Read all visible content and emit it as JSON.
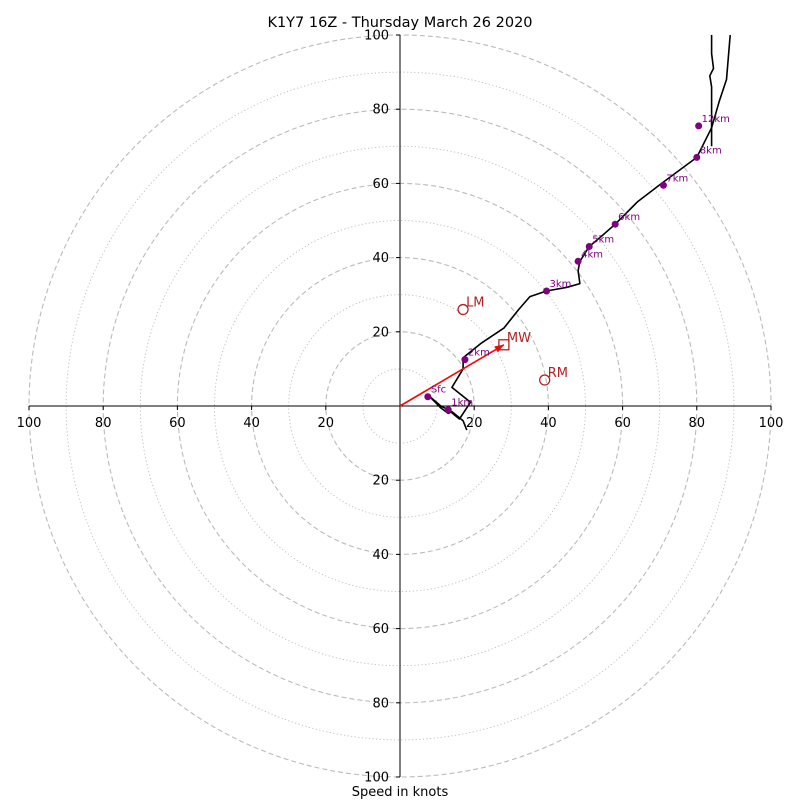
{
  "chart_data": {
    "type": "scatter",
    "title": "K1Y7 16Z - Thursday March 26 2020",
    "xlabel": "Speed in knots",
    "ylabel": "",
    "xlim": [
      -100,
      100
    ],
    "ylim": [
      -100,
      100
    ],
    "x_ticks": [
      -100,
      -80,
      -60,
      -40,
      -20,
      20,
      40,
      60,
      80,
      100
    ],
    "x_tick_labels": [
      "100",
      "80",
      "60",
      "40",
      "20",
      "20",
      "40",
      "60",
      "80",
      "100"
    ],
    "y_ticks": [
      100,
      80,
      60,
      40,
      20,
      -20,
      -40,
      -60,
      -80,
      -100
    ],
    "y_tick_labels": [
      "100",
      "80",
      "60",
      "40",
      "20",
      "20",
      "40",
      "60",
      "80",
      "100"
    ],
    "rings_major": [
      20,
      40,
      60,
      80,
      100
    ],
    "rings_minor": [
      10,
      30,
      50,
      70,
      90
    ],
    "colors": {
      "hodograph": "#000000",
      "height_markers": "#800080",
      "motion": "#b22222",
      "shear_vector": "#ff0000",
      "grid": "#bbbbbb"
    },
    "hodograph": [
      [
        18,
        -6.5
      ],
      [
        17,
        -4
      ],
      [
        14,
        -1.5
      ],
      [
        13,
        -2
      ],
      [
        11,
        -0.5
      ],
      [
        10,
        0.5
      ],
      [
        8,
        2.5
      ],
      [
        7.5,
        3
      ],
      [
        11,
        0
      ],
      [
        13,
        -1
      ],
      [
        16,
        -3.5
      ],
      [
        19,
        1
      ],
      [
        14,
        5
      ],
      [
        17,
        10
      ],
      [
        17,
        13
      ],
      [
        22,
        17
      ],
      [
        28,
        21
      ],
      [
        32,
        26
      ],
      [
        35,
        29.5
      ],
      [
        39.5,
        31
      ],
      [
        45,
        32
      ],
      [
        48.5,
        33
      ],
      [
        48,
        36.5
      ],
      [
        48.5,
        39
      ],
      [
        51,
        43
      ],
      [
        54,
        45.5
      ],
      [
        58,
        49
      ],
      [
        64,
        55
      ],
      [
        70.5,
        60
      ],
      [
        80,
        67
      ],
      [
        84,
        75
      ],
      [
        86,
        82
      ],
      [
        88,
        88
      ],
      [
        89,
        100
      ]
    ],
    "hodograph_secondary": [
      [
        84,
        70
      ],
      [
        84,
        86
      ],
      [
        83.5,
        89
      ],
      [
        84.5,
        91
      ],
      [
        84,
        95
      ],
      [
        84,
        100
      ]
    ],
    "height_markers": [
      {
        "label": "Sfc",
        "u": 7.5,
        "v": 2.5
      },
      {
        "label": "1km",
        "u": 13,
        "v": -1
      },
      {
        "label": "2km",
        "u": 17.5,
        "v": 12.5
      },
      {
        "label": "3km",
        "u": 39.5,
        "v": 31
      },
      {
        "label": "4km",
        "u": 48,
        "v": 39
      },
      {
        "label": "5km",
        "u": 51,
        "v": 43
      },
      {
        "label": "6km",
        "u": 58,
        "v": 49
      },
      {
        "label": "7km",
        "u": 71,
        "v": 59.5
      },
      {
        "label": "8km",
        "u": 80,
        "v": 67
      },
      {
        "label": "12km",
        "u": 80.5,
        "v": 75.5
      }
    ],
    "storm_motion": [
      {
        "label": "LM",
        "u": 17,
        "v": 26,
        "marker": "circle"
      },
      {
        "label": "MW",
        "u": 28,
        "v": 16.5,
        "marker": "square"
      },
      {
        "label": "RM",
        "u": 39,
        "v": 7,
        "marker": "circle"
      }
    ],
    "shear_vector": {
      "from": [
        0,
        0
      ],
      "to": [
        28,
        16.5
      ]
    }
  }
}
